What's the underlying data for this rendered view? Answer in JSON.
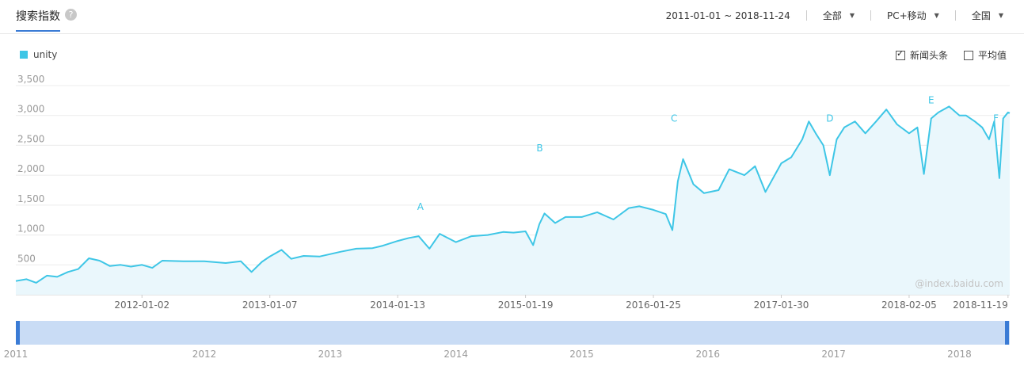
{
  "header": {
    "title": "搜索指数",
    "help_icon": "question-icon",
    "date_range": "2011-01-01 ~ 2018-11-24",
    "region_scope": "全部",
    "device": "PC+移动",
    "area": "全国"
  },
  "legend": {
    "label": "unity",
    "color": "#3ec6e6"
  },
  "options": {
    "news": "新闻头条",
    "news_checked": true,
    "average": "平均值",
    "average_checked": false
  },
  "watermark": "@index.baidu.com",
  "chart_data": {
    "type": "area",
    "ylim": [
      0,
      3500
    ],
    "yticks": [
      {
        "value": 500,
        "label": "500"
      },
      {
        "value": 1000,
        "label": "1,000"
      },
      {
        "value": 1500,
        "label": "1,500"
      },
      {
        "value": 2000,
        "label": "2,000"
      },
      {
        "value": 2500,
        "label": "2,500"
      },
      {
        "value": 3000,
        "label": "3,000"
      },
      {
        "value": 3500,
        "label": "3,500"
      }
    ],
    "xlim": [
      "2011-01-01",
      "2018-11-24"
    ],
    "xticks": [
      "2012-01-02",
      "2013-01-07",
      "2014-01-13",
      "2015-01-19",
      "2016-01-25",
      "2017-01-30",
      "2018-02-05",
      "2018-11-19"
    ],
    "series": [
      {
        "name": "unity",
        "color": "#3ec6e6",
        "points": [
          [
            "2011-01-01",
            230
          ],
          [
            "2011-02-01",
            260
          ],
          [
            "2011-03-01",
            200
          ],
          [
            "2011-04-01",
            320
          ],
          [
            "2011-05-01",
            300
          ],
          [
            "2011-06-01",
            380
          ],
          [
            "2011-07-01",
            430
          ],
          [
            "2011-08-01",
            610
          ],
          [
            "2011-09-01",
            570
          ],
          [
            "2011-10-01",
            480
          ],
          [
            "2011-11-01",
            500
          ],
          [
            "2011-12-01",
            470
          ],
          [
            "2012-01-02",
            500
          ],
          [
            "2012-02-01",
            450
          ],
          [
            "2012-03-01",
            570
          ],
          [
            "2012-05-01",
            560
          ],
          [
            "2012-07-01",
            560
          ],
          [
            "2012-09-01",
            530
          ],
          [
            "2012-10-15",
            560
          ],
          [
            "2012-11-15",
            380
          ],
          [
            "2012-12-15",
            550
          ],
          [
            "2013-01-07",
            640
          ],
          [
            "2013-02-10",
            750
          ],
          [
            "2013-03-10",
            600
          ],
          [
            "2013-04-15",
            650
          ],
          [
            "2013-06-01",
            640
          ],
          [
            "2013-08-01",
            720
          ],
          [
            "2013-09-15",
            770
          ],
          [
            "2013-11-01",
            780
          ],
          [
            "2013-12-01",
            820
          ],
          [
            "2014-01-13",
            900
          ],
          [
            "2014-02-15",
            950
          ],
          [
            "2014-03-15",
            980
          ],
          [
            "2014-04-15",
            770
          ],
          [
            "2014-05-15",
            1020
          ],
          [
            "2014-07-01",
            880
          ],
          [
            "2014-08-15",
            980
          ],
          [
            "2014-10-01",
            1000
          ],
          [
            "2014-11-15",
            1050
          ],
          [
            "2014-12-15",
            1040
          ],
          [
            "2015-01-19",
            1060
          ],
          [
            "2015-02-10",
            830
          ],
          [
            "2015-02-28",
            1180
          ],
          [
            "2015-03-15",
            1360
          ],
          [
            "2015-04-15",
            1200
          ],
          [
            "2015-05-15",
            1300
          ],
          [
            "2015-07-01",
            1300
          ],
          [
            "2015-08-15",
            1380
          ],
          [
            "2015-10-01",
            1260
          ],
          [
            "2015-11-15",
            1450
          ],
          [
            "2015-12-15",
            1480
          ],
          [
            "2016-01-25",
            1420
          ],
          [
            "2016-03-01",
            1350
          ],
          [
            "2016-03-20",
            1080
          ],
          [
            "2016-04-05",
            1900
          ],
          [
            "2016-04-20",
            2270
          ],
          [
            "2016-05-20",
            1850
          ],
          [
            "2016-06-20",
            1700
          ],
          [
            "2016-08-01",
            1750
          ],
          [
            "2016-09-01",
            2100
          ],
          [
            "2016-10-15",
            2000
          ],
          [
            "2016-11-15",
            2150
          ],
          [
            "2016-12-15",
            1720
          ],
          [
            "2017-01-30",
            2200
          ],
          [
            "2017-02-28",
            2300
          ],
          [
            "2017-04-01",
            2600
          ],
          [
            "2017-04-20",
            2900
          ],
          [
            "2017-05-10",
            2700
          ],
          [
            "2017-06-01",
            2500
          ],
          [
            "2017-06-20",
            2000
          ],
          [
            "2017-07-10",
            2600
          ],
          [
            "2017-08-01",
            2800
          ],
          [
            "2017-09-01",
            2900
          ],
          [
            "2017-10-01",
            2700
          ],
          [
            "2017-11-01",
            2900
          ],
          [
            "2017-12-01",
            3100
          ],
          [
            "2018-01-01",
            2850
          ],
          [
            "2018-02-05",
            2700
          ],
          [
            "2018-03-01",
            2800
          ],
          [
            "2018-03-20",
            2020
          ],
          [
            "2018-04-10",
            2950
          ],
          [
            "2018-05-01",
            3050
          ],
          [
            "2018-06-01",
            3150
          ],
          [
            "2018-07-01",
            3000
          ],
          [
            "2018-07-20",
            3000
          ],
          [
            "2018-08-15",
            2900
          ],
          [
            "2018-09-05",
            2800
          ],
          [
            "2018-09-25",
            2600
          ],
          [
            "2018-10-10",
            2900
          ],
          [
            "2018-10-25",
            1950
          ],
          [
            "2018-11-05",
            2950
          ],
          [
            "2018-11-19",
            3050
          ],
          [
            "2018-11-24",
            3040
          ]
        ]
      }
    ],
    "annotations": [
      {
        "label": "A",
        "x": "2014-03-20",
        "y": 1420
      },
      {
        "label": "B",
        "x": "2015-03-01",
        "y": 2400
      },
      {
        "label": "C",
        "x": "2016-03-25",
        "y": 2900
      },
      {
        "label": "D",
        "x": "2017-06-20",
        "y": 2900
      },
      {
        "label": "E",
        "x": "2018-04-10",
        "y": 3200
      },
      {
        "label": "F",
        "x": "2018-10-15",
        "y": 2900
      }
    ]
  },
  "navigator": {
    "years": [
      "2011",
      "2012",
      "2013",
      "2014",
      "2015",
      "2016",
      "2017",
      "2018"
    ]
  }
}
